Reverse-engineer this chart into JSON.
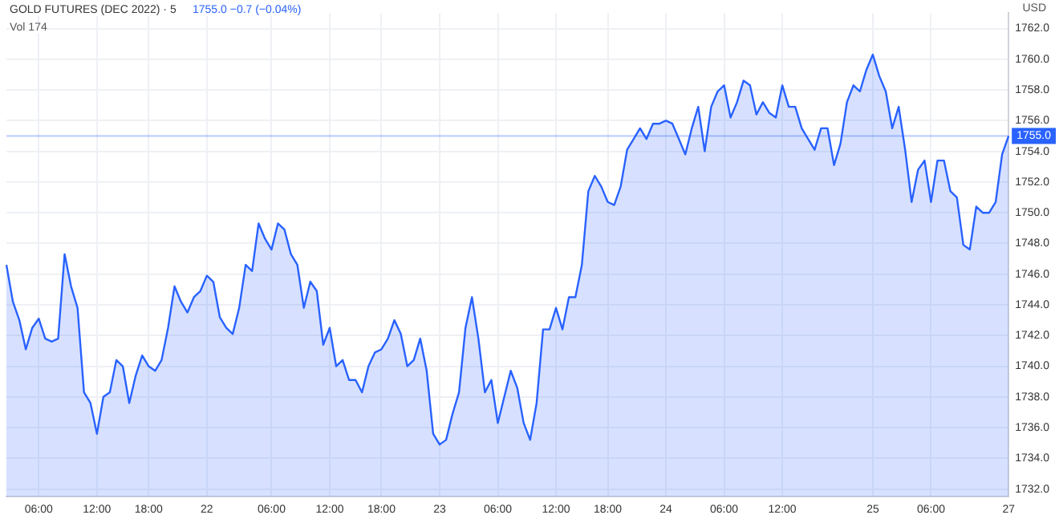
{
  "chart_data": {
    "type": "area",
    "title": "GOLD FUTURES (DEC 2022) · 5",
    "annotations": [
      "1755.0 −0.7 (−0.04%)",
      "Vol 174",
      "USD"
    ],
    "categories": [
      null,
      null,
      null,
      null,
      null,
      "06:00",
      null,
      null,
      null,
      null,
      null,
      null,
      null,
      null,
      "12:00",
      null,
      null,
      null,
      null,
      null,
      null,
      null,
      "18:00",
      null,
      null,
      null,
      null,
      null,
      null,
      null,
      null,
      "22",
      null,
      null,
      null,
      null,
      null,
      null,
      null,
      null,
      null,
      "06:00",
      null,
      null,
      null,
      null,
      null,
      null,
      null,
      null,
      "12:00",
      null,
      null,
      null,
      null,
      null,
      null,
      null,
      "18:00",
      null,
      null,
      null,
      null,
      null,
      null,
      null,
      null,
      "23",
      null,
      null,
      null,
      null,
      null,
      null,
      null,
      null,
      "06:00",
      null,
      null,
      null,
      null,
      null,
      null,
      null,
      null,
      "12:00",
      null,
      null,
      null,
      null,
      null,
      null,
      null,
      "18:00",
      null,
      null,
      null,
      null,
      null,
      null,
      null,
      null,
      "24",
      null,
      null,
      null,
      null,
      null,
      null,
      null,
      null,
      "06:00",
      null,
      null,
      null,
      null,
      null,
      null,
      null,
      null,
      "12:00",
      null,
      null,
      null,
      null,
      null,
      null,
      null,
      null,
      null,
      null,
      null,
      null,
      null,
      "25",
      null,
      null,
      null,
      null,
      null,
      null,
      null,
      null,
      "06:00",
      null,
      null,
      null,
      null,
      null,
      null,
      null,
      null,
      null,
      null,
      null,
      "27"
    ],
    "series": [
      {
        "color": "#2962ff",
        "values": [
          1746.6,
          1744.2,
          1743.0,
          1741.1,
          1742.5,
          1743.1,
          1741.8,
          1741.6,
          1741.8,
          1747.3,
          1745.2,
          1743.8,
          1738.3,
          1737.6,
          1735.6,
          1738.0,
          1738.3,
          1740.4,
          1740.0,
          1737.6,
          1739.4,
          1740.7,
          1740.0,
          1739.7,
          1740.4,
          1742.5,
          1745.2,
          1744.2,
          1743.5,
          1744.5,
          1744.9,
          1745.9,
          1745.5,
          1743.2,
          1742.5,
          1742.1,
          1743.8,
          1746.6,
          1746.2,
          1749.3,
          1748.3,
          1747.6,
          1749.3,
          1748.9,
          1747.3,
          1746.6,
          1743.8,
          1745.5,
          1744.9,
          1741.4,
          1742.5,
          1740.0,
          1740.4,
          1739.1,
          1739.1,
          1738.3,
          1740.0,
          1740.9,
          1741.1,
          1741.8,
          1743.0,
          1742.1,
          1740.0,
          1740.4,
          1741.8,
          1739.7,
          1735.6,
          1734.9,
          1735.2,
          1736.9,
          1738.3,
          1742.5,
          1744.5,
          1741.8,
          1738.3,
          1739.1,
          1736.3,
          1738.0,
          1739.7,
          1738.6,
          1736.3,
          1735.2,
          1737.6,
          1742.4,
          1742.4,
          1743.8,
          1742.4,
          1744.5,
          1744.5,
          1746.6,
          1751.4,
          1752.4,
          1751.7,
          1750.7,
          1750.5,
          1751.7,
          1754.1,
          1754.8,
          1755.5,
          1754.8,
          1755.8,
          1755.8,
          1756.0,
          1755.8,
          1754.8,
          1753.8,
          1755.5,
          1756.9,
          1754.0,
          1756.9,
          1757.9,
          1758.3,
          1756.2,
          1757.2,
          1758.6,
          1758.3,
          1756.4,
          1757.2,
          1756.5,
          1756.2,
          1758.3,
          1756.9,
          1756.9,
          1755.5,
          1754.8,
          1754.1,
          1755.5,
          1755.5,
          1753.1,
          1754.5,
          1757.2,
          1758.3,
          1757.9,
          1759.3,
          1760.3,
          1758.9,
          1757.9,
          1755.5,
          1756.9,
          1754.1,
          1750.7,
          1752.8,
          1753.4,
          1750.7,
          1753.4,
          1753.4,
          1751.4,
          1751.0,
          1747.9,
          1747.6,
          1750.4,
          1750.0,
          1750.0,
          1750.7,
          1753.8,
          1755.0
        ]
      }
    ],
    "ylim": [
      1731.5,
      1763
    ],
    "yticks": [
      {
        "value": 1732,
        "label": "1732.0"
      },
      {
        "value": 1734,
        "label": "1734.0"
      },
      {
        "value": 1736,
        "label": "1736.0"
      },
      {
        "value": 1738,
        "label": "1738.0"
      },
      {
        "value": 1740,
        "label": "1740.0"
      },
      {
        "value": 1742,
        "label": "1742.0"
      },
      {
        "value": 1744,
        "label": "1744.0"
      },
      {
        "value": 1746,
        "label": "1746.0"
      },
      {
        "value": 1748,
        "label": "1748.0"
      },
      {
        "value": 1750,
        "label": "1750.0"
      },
      {
        "value": 1752,
        "label": "1752.0"
      },
      {
        "value": 1754,
        "label": "1754.0"
      },
      {
        "value": 1756,
        "label": "1756.0"
      },
      {
        "value": 1758,
        "label": "1758.0"
      },
      {
        "value": 1760,
        "label": "1760.0"
      },
      {
        "value": 1762,
        "label": "1762.0"
      }
    ],
    "ref_lines": [
      {
        "axis": "y",
        "value": 1755,
        "label": "1755.0",
        "color": "#2962ff"
      }
    ],
    "grid": true,
    "legend": false,
    "marker": "none",
    "line_style": "solid"
  }
}
